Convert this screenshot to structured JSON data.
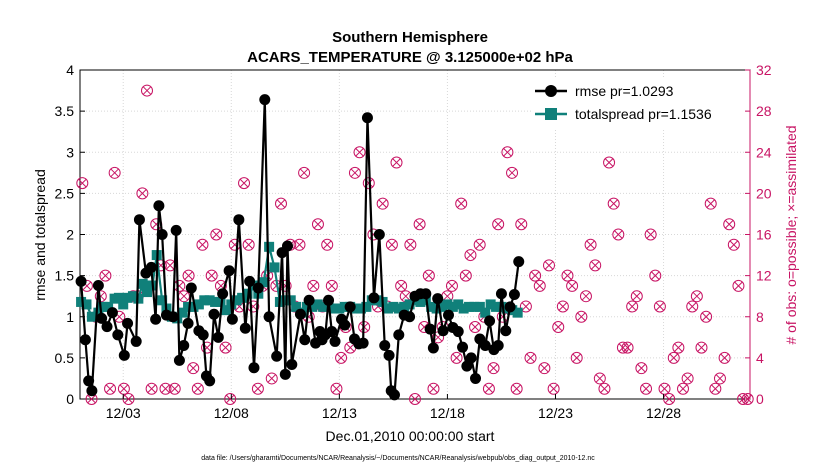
{
  "chart_data": {
    "type": "line",
    "title": "Southern Hemisphere",
    "subtitle": "ACARS_TEMPERATURE @ 3.125000e+02 hPa",
    "xlabel": "Dec.01,2010 00:00:00 start",
    "ylabel_left": "rmse and totalspread",
    "ylabel_right": "# of obs: o=possible; ×=assimilated",
    "xlim": [
      0,
      31
    ],
    "ylim_left": [
      0,
      4
    ],
    "ylim_right": [
      0,
      32
    ],
    "x_ticks": [
      {
        "x": 2,
        "label": "12/03"
      },
      {
        "x": 7,
        "label": "12/08"
      },
      {
        "x": 12,
        "label": "12/13"
      },
      {
        "x": 17,
        "label": "12/18"
      },
      {
        "x": 22,
        "label": "12/23"
      },
      {
        "x": 27,
        "label": "12/28"
      }
    ],
    "y_ticks_left": [
      "0",
      "0.5",
      "1",
      "1.5",
      "2",
      "2.5",
      "3",
      "3.5",
      "4"
    ],
    "y_ticks_right": [
      "0",
      "4",
      "8",
      "12",
      "16",
      "20",
      "24",
      "28",
      "32"
    ],
    "colors": {
      "rmse": "#000000",
      "totalspread": "#10807a",
      "obs": "#c81464",
      "axis_right": "#c81464"
    },
    "footnote": "data file: /Users/gharamti/Documents/NCAR/Reanalysis/~/Documents/NCAR/Reanalysis/webpub/obs_diag_output_2010-12.nc",
    "legend_position": "top-right",
    "series": [
      {
        "name": "rmse",
        "legend": "rmse pr=1.0293",
        "color": "#000000",
        "marker": "circle",
        "points": [
          [
            0.05,
            1.43
          ],
          [
            0.25,
            0.72
          ],
          [
            0.4,
            0.22
          ],
          [
            0.55,
            0.1
          ],
          [
            0.85,
            1.38
          ],
          [
            1.0,
            0.98
          ],
          [
            1.25,
            0.88
          ],
          [
            1.5,
            1.05
          ],
          [
            1.75,
            0.78
          ],
          [
            2.05,
            0.53
          ],
          [
            2.2,
            0.92
          ],
          [
            2.6,
            0.7
          ],
          [
            2.75,
            2.18
          ],
          [
            3.05,
            1.53
          ],
          [
            3.3,
            1.6
          ],
          [
            3.5,
            0.97
          ],
          [
            3.65,
            2.35
          ],
          [
            3.8,
            2.0
          ],
          [
            4.0,
            1.02
          ],
          [
            4.3,
            1.0
          ],
          [
            4.45,
            2.05
          ],
          [
            4.6,
            0.47
          ],
          [
            4.8,
            0.65
          ],
          [
            5.0,
            0.92
          ],
          [
            5.15,
            1.35
          ],
          [
            5.5,
            0.83
          ],
          [
            5.7,
            0.78
          ],
          [
            5.85,
            0.28
          ],
          [
            6.0,
            0.22
          ],
          [
            6.2,
            1.03
          ],
          [
            6.4,
            0.75
          ],
          [
            6.6,
            1.28
          ],
          [
            6.9,
            1.56
          ],
          [
            7.05,
            0.97
          ],
          [
            7.35,
            2.18
          ],
          [
            7.65,
            0.86
          ],
          [
            7.85,
            1.43
          ],
          [
            8.05,
            0.38
          ],
          [
            8.25,
            1.35
          ],
          [
            8.55,
            3.64
          ],
          [
            8.75,
            1.0
          ],
          [
            9.1,
            0.52
          ],
          [
            9.35,
            1.78
          ],
          [
            9.5,
            0.3
          ],
          [
            9.6,
            1.86
          ],
          [
            9.8,
            0.42
          ],
          [
            10.2,
            1.03
          ],
          [
            10.4,
            0.72
          ],
          [
            10.6,
            1.2
          ],
          [
            10.9,
            0.68
          ],
          [
            11.1,
            0.82
          ],
          [
            11.2,
            0.72
          ],
          [
            11.35,
            0.78
          ],
          [
            11.5,
            1.2
          ],
          [
            11.65,
            0.82
          ],
          [
            11.8,
            0.7
          ],
          [
            12.1,
            0.97
          ],
          [
            12.25,
            0.9
          ],
          [
            12.5,
            1.12
          ],
          [
            12.7,
            0.73
          ],
          [
            12.9,
            0.67
          ],
          [
            13.1,
            0.68
          ],
          [
            13.3,
            3.42
          ],
          [
            13.6,
            1.23
          ],
          [
            13.85,
            2.0
          ],
          [
            14.1,
            0.65
          ],
          [
            14.3,
            0.53
          ],
          [
            14.4,
            0.1
          ],
          [
            14.55,
            0.05
          ],
          [
            14.75,
            0.78
          ],
          [
            15.0,
            1.02
          ],
          [
            15.25,
            1.0
          ],
          [
            15.5,
            1.25
          ],
          [
            15.75,
            1.28
          ],
          [
            16.0,
            1.28
          ],
          [
            16.2,
            0.85
          ],
          [
            16.35,
            0.62
          ],
          [
            16.55,
            1.22
          ],
          [
            16.8,
            0.83
          ],
          [
            17.05,
            1.02
          ],
          [
            17.25,
            0.87
          ],
          [
            17.5,
            0.82
          ],
          [
            17.7,
            0.63
          ],
          [
            17.9,
            0.4
          ],
          [
            18.1,
            0.5
          ],
          [
            18.3,
            0.25
          ],
          [
            18.5,
            0.73
          ],
          [
            18.75,
            0.65
          ],
          [
            18.95,
            0.95
          ],
          [
            19.15,
            0.6
          ],
          [
            19.35,
            0.65
          ],
          [
            19.5,
            1.28
          ],
          [
            19.7,
            0.83
          ],
          [
            19.9,
            1.12
          ],
          [
            20.1,
            1.27
          ],
          [
            20.3,
            1.67
          ]
        ]
      },
      {
        "name": "totalspread",
        "legend": "totalspread pr=1.1536",
        "color": "#10807a",
        "marker": "square",
        "points": [
          [
            0.05,
            1.18
          ],
          [
            0.3,
            1.15
          ],
          [
            0.55,
            1.0
          ],
          [
            0.85,
            1.05
          ],
          [
            1.05,
            1.12
          ],
          [
            1.3,
            1.12
          ],
          [
            1.6,
            1.22
          ],
          [
            1.8,
            1.23
          ],
          [
            2.0,
            1.15
          ],
          [
            2.2,
            1.23
          ],
          [
            2.45,
            1.25
          ],
          [
            2.7,
            1.22
          ],
          [
            2.9,
            1.4
          ],
          [
            3.1,
            1.3
          ],
          [
            3.35,
            1.38
          ],
          [
            3.55,
            1.75
          ],
          [
            3.8,
            1.2
          ],
          [
            4.0,
            1.1
          ],
          [
            4.25,
            1.0
          ],
          [
            4.5,
            0.98
          ],
          [
            4.75,
            1.05
          ],
          [
            5.0,
            1.12
          ],
          [
            5.25,
            1.12
          ],
          [
            5.5,
            1.15
          ],
          [
            5.75,
            1.2
          ],
          [
            6.0,
            1.2
          ],
          [
            6.25,
            1.18
          ],
          [
            6.5,
            1.18
          ],
          [
            6.75,
            1.08
          ],
          [
            7.0,
            1.15
          ],
          [
            7.25,
            1.2
          ],
          [
            7.5,
            1.23
          ],
          [
            7.75,
            1.28
          ],
          [
            8.0,
            1.38
          ],
          [
            8.25,
            1.28
          ],
          [
            8.5,
            1.42
          ],
          [
            8.75,
            1.85
          ],
          [
            9.0,
            1.6
          ],
          [
            9.25,
            1.18
          ],
          [
            9.5,
            1.2
          ],
          [
            9.75,
            1.2
          ],
          [
            10.0,
            1.12
          ],
          [
            10.25,
            1.05
          ],
          [
            10.5,
            1.12
          ],
          [
            10.75,
            1.12
          ],
          [
            11.0,
            1.15
          ],
          [
            11.25,
            1.12
          ],
          [
            11.5,
            1.15
          ],
          [
            11.75,
            1.1
          ],
          [
            12.0,
            1.1
          ],
          [
            12.25,
            1.12
          ],
          [
            12.5,
            1.12
          ],
          [
            12.75,
            1.1
          ],
          [
            13.0,
            1.1
          ],
          [
            13.25,
            1.12
          ],
          [
            13.5,
            1.2
          ],
          [
            13.75,
            1.2
          ],
          [
            14.0,
            1.18
          ],
          [
            14.25,
            1.1
          ],
          [
            14.5,
            1.12
          ],
          [
            14.75,
            1.1
          ],
          [
            15.0,
            1.12
          ],
          [
            15.25,
            1.15
          ],
          [
            15.5,
            1.2
          ],
          [
            15.75,
            1.18
          ],
          [
            16.0,
            1.2
          ],
          [
            16.25,
            1.12
          ],
          [
            16.5,
            1.1
          ],
          [
            16.75,
            1.12
          ],
          [
            17.0,
            1.15
          ],
          [
            17.25,
            1.12
          ],
          [
            17.5,
            1.15
          ],
          [
            17.75,
            1.1
          ],
          [
            18.0,
            1.12
          ],
          [
            18.25,
            1.12
          ],
          [
            18.5,
            1.12
          ],
          [
            18.75,
            1.05
          ],
          [
            19.0,
            1.15
          ],
          [
            19.25,
            1.12
          ],
          [
            19.5,
            1.12
          ],
          [
            19.75,
            1.1
          ],
          [
            20.0,
            1.08
          ],
          [
            20.25,
            1.05
          ]
        ]
      }
    ],
    "obs_possible_counts": [
      21,
      11,
      0,
      8,
      10,
      12,
      1,
      22,
      8,
      1,
      0,
      10,
      10,
      20,
      30,
      1,
      17,
      13,
      1,
      13,
      1,
      11,
      10,
      12,
      3,
      1,
      15,
      5,
      12,
      16,
      11,
      5,
      0,
      15,
      9,
      21,
      15,
      9,
      1,
      11,
      12,
      2,
      11,
      19,
      11,
      15,
      9,
      15,
      22,
      8,
      11,
      17,
      9,
      15,
      11,
      1,
      4,
      7,
      5,
      22,
      24,
      7,
      21,
      16,
      9,
      19,
      9,
      15,
      23,
      11,
      10,
      15,
      0,
      17,
      7,
      12,
      1,
      6,
      7,
      10,
      11,
      4,
      19,
      12,
      14,
      7,
      15,
      8,
      1,
      3,
      17,
      8,
      24,
      22,
      1,
      17,
      9,
      4,
      12,
      11,
      3,
      13,
      1,
      7,
      9,
      12,
      11,
      4,
      8,
      10,
      15,
      13,
      2,
      1,
      23,
      19,
      16,
      5,
      5,
      9,
      10,
      3,
      1,
      16,
      12,
      9,
      1,
      0,
      4,
      5,
      1,
      2,
      9,
      10,
      5,
      8,
      19,
      1,
      2,
      4,
      17,
      15,
      11,
      0,
      0
    ],
    "obs_assimilated_counts": [
      21,
      11,
      0,
      8,
      10,
      12,
      1,
      22,
      8,
      1,
      0,
      10,
      10,
      20,
      30,
      1,
      17,
      13,
      1,
      13,
      1,
      11,
      10,
      12,
      3,
      1,
      15,
      5,
      12,
      16,
      11,
      5,
      0,
      15,
      9,
      21,
      15,
      9,
      1,
      11,
      12,
      2,
      11,
      19,
      11,
      15,
      9,
      15,
      22,
      8,
      11,
      17,
      9,
      15,
      11,
      1,
      4,
      7,
      5,
      22,
      24,
      7,
      21,
      16,
      9,
      19,
      9,
      15,
      23,
      11,
      10,
      15,
      0,
      17,
      7,
      12,
      1,
      6,
      7,
      10,
      11,
      4,
      19,
      12,
      14,
      7,
      15,
      8,
      1,
      3,
      17,
      8,
      24,
      22,
      1,
      17,
      9,
      4,
      12,
      11,
      3,
      13,
      1,
      7,
      9,
      12,
      11,
      4,
      8,
      10,
      15,
      13,
      2,
      1,
      23,
      19,
      16,
      5,
      5,
      9,
      10,
      3,
      1,
      16,
      12,
      9,
      1,
      0,
      4,
      5,
      1,
      2,
      9,
      10,
      5,
      8,
      19,
      1,
      2,
      4,
      17,
      15,
      11,
      0,
      0
    ]
  }
}
